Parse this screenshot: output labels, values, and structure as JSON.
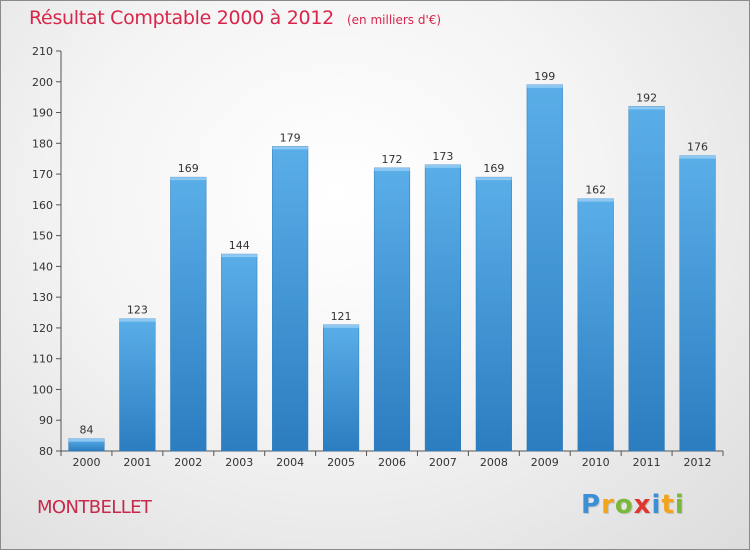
{
  "chart_data": {
    "type": "bar",
    "title": "Résultat Comptable 2000 à 2012",
    "subtitle": "(en milliers d'€)",
    "categories": [
      "2000",
      "2001",
      "2002",
      "2003",
      "2004",
      "2005",
      "2006",
      "2007",
      "2008",
      "2009",
      "2010",
      "2011",
      "2012"
    ],
    "values": [
      84,
      123,
      169,
      144,
      179,
      121,
      172,
      173,
      169,
      199,
      162,
      192,
      176
    ],
    "xlabel": "",
    "ylabel": "",
    "ylim": [
      80,
      210
    ],
    "yticks": [
      80,
      90,
      100,
      110,
      120,
      130,
      140,
      150,
      160,
      170,
      180,
      190,
      200,
      210
    ],
    "grid": false,
    "legend": "none",
    "bar_color_light": "#5aaee8",
    "bar_color_dark": "#2c7dc0",
    "title_color": "#d9254a"
  },
  "footer": {
    "place": "MONTBELLET",
    "brand_letters": [
      {
        "char": "P",
        "color": "#3a8fd6"
      },
      {
        "char": "r",
        "color": "#f2a51a"
      },
      {
        "char": "o",
        "color": "#7ab83a"
      },
      {
        "char": "x",
        "color": "#e0342e"
      },
      {
        "char": "i",
        "color": "#3a8fd6"
      },
      {
        "char": "t",
        "color": "#f2a51a"
      },
      {
        "char": "i",
        "color": "#7ab83a"
      }
    ]
  }
}
